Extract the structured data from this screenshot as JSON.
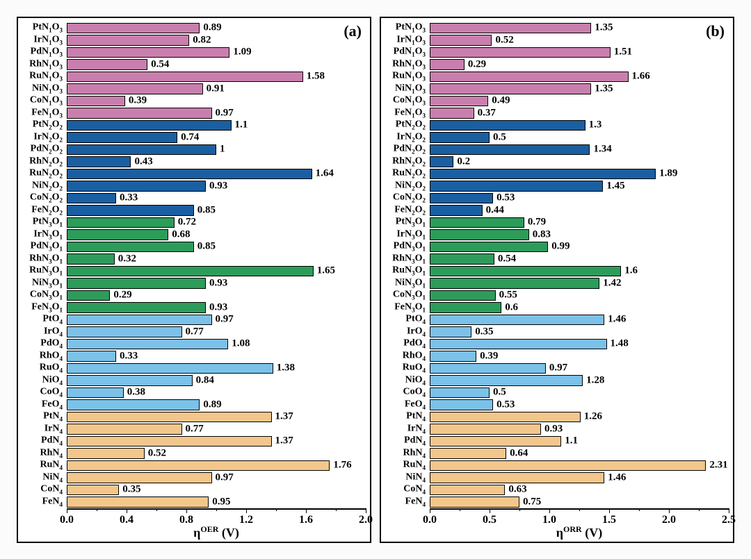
{
  "figure": {
    "background_color": "#fcfbfc",
    "panel_border_color": "#000000",
    "panel_background": "#ffffff",
    "bar_border_color": "#000000",
    "text_color": "#000000",
    "font_family": "Times New Roman, serif",
    "panel_label_fontsize": 22,
    "ylabel_fontsize": 14,
    "value_fontsize": 15,
    "tick_fontsize": 16,
    "axis_title_fontsize": 18
  },
  "groups": {
    "N1O3": "#c97fad",
    "N2O2": "#1a5fa1",
    "N3O1": "#2d9c5a",
    "O4": "#7cc1e8",
    "N4": "#f3c78b"
  },
  "metals_order": [
    "Pt",
    "Ir",
    "Pd",
    "Rh",
    "Ru",
    "Ni",
    "Co",
    "Fe"
  ],
  "group_order": [
    "N1O3",
    "N2O2",
    "N3O1",
    "O4",
    "N4"
  ],
  "y_labels": {
    "N1O3": {
      "suffix_html": "N<sub>1</sub>O<sub>3</sub>"
    },
    "N2O2": {
      "suffix_html": "N<sub>2</sub>O<sub>2</sub>"
    },
    "N3O1": {
      "suffix_html": "N<sub>3</sub>O<sub>1</sub>"
    },
    "O4": {
      "suffix_html": "O<sub>4</sub>"
    },
    "N4": {
      "suffix_html": "N<sub>4</sub>"
    }
  },
  "panels": {
    "a": {
      "label": "(a)",
      "axis_title_html": "η<sup>OER</sup> (V)",
      "xlim": [
        0,
        2.0
      ],
      "xtick_step": 0.4,
      "xminor_step": 0.2,
      "data": {
        "N1O3": {
          "Pt": 0.89,
          "Ir": 0.82,
          "Pd": 1.09,
          "Rh": 0.54,
          "Ru": 1.58,
          "Ni": 0.91,
          "Co": 0.39,
          "Fe": 0.97
        },
        "N2O2": {
          "Pt": 1.1,
          "Ir": 0.74,
          "Pd": 1.0,
          "Rh": 0.43,
          "Ru": 1.64,
          "Ni": 0.93,
          "Co": 0.33,
          "Fe": 0.85
        },
        "N3O1": {
          "Pt": 0.72,
          "Ir": 0.68,
          "Pd": 0.85,
          "Rh": 0.32,
          "Ru": 1.65,
          "Ni": 0.93,
          "Co": 0.29,
          "Fe": 0.93
        },
        "O4": {
          "Pt": 0.97,
          "Ir": 0.77,
          "Pd": 1.08,
          "Rh": 0.33,
          "Ru": 1.38,
          "Ni": 0.84,
          "Co": 0.38,
          "Fe": 0.89
        },
        "N4": {
          "Pt": 1.37,
          "Ir": 0.77,
          "Pd": 1.37,
          "Rh": 0.52,
          "Ru": 1.76,
          "Ni": 0.97,
          "Co": 0.35,
          "Fe": 0.95
        }
      },
      "value_format": {
        "N2O2": {
          "Pt": "1.1",
          "Pd": "1"
        }
      }
    },
    "b": {
      "label": "(b)",
      "axis_title_html": "η<sup>ORR</sup> (V)",
      "xlim": [
        0,
        2.5
      ],
      "xtick_step": 0.5,
      "xminor_step": 0.25,
      "data": {
        "N1O3": {
          "Pt": 1.35,
          "Ir": 0.52,
          "Pd": 1.51,
          "Rh": 0.29,
          "Ru": 1.66,
          "Ni": 1.35,
          "Co": 0.49,
          "Fe": 0.37
        },
        "N2O2": {
          "Pt": 1.3,
          "Ir": 0.5,
          "Pd": 1.34,
          "Rh": 0.2,
          "Ru": 1.89,
          "Ni": 1.45,
          "Co": 0.53,
          "Fe": 0.44
        },
        "N3O1": {
          "Pt": 0.79,
          "Ir": 0.83,
          "Pd": 0.99,
          "Rh": 0.54,
          "Ru": 1.6,
          "Ni": 1.42,
          "Co": 0.55,
          "Fe": 0.6
        },
        "O4": {
          "Pt": 1.46,
          "Ir": 0.35,
          "Pd": 1.48,
          "Rh": 0.39,
          "Ru": 0.97,
          "Ni": 1.28,
          "Co": 0.5,
          "Fe": 0.53
        },
        "N4": {
          "Pt": 1.26,
          "Ir": 0.93,
          "Pd": 1.1,
          "Rh": 0.64,
          "Ru": 2.31,
          "Ni": 1.46,
          "Co": 0.63,
          "Fe": 0.75
        }
      },
      "value_format": {
        "N2O2": {
          "Pt": "1.3",
          "Ir": "0.5",
          "Rh": "0.2"
        },
        "N3O1": {
          "Ru": "1.6",
          "Fe": "0.6"
        },
        "O4": {
          "Co": "0.5"
        },
        "N4": {
          "Pd": "1.1"
        }
      }
    }
  }
}
